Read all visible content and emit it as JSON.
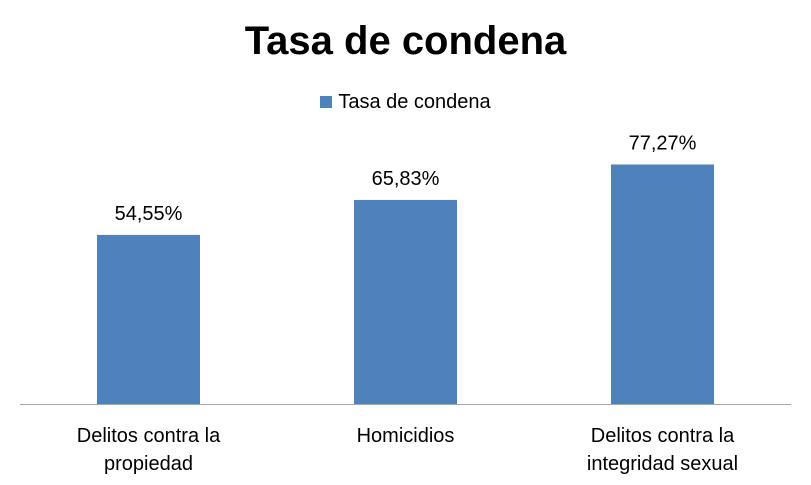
{
  "chart_data": {
    "type": "bar",
    "title": "Tasa de condena",
    "categories": [
      [
        "Delitos contra la",
        "propiedad"
      ],
      [
        "Homicidios"
      ],
      [
        "Delitos contra la",
        "integridad sexual"
      ]
    ],
    "series": [
      {
        "name": "Tasa de condena",
        "values": [
          54.55,
          65.83,
          77.27
        ],
        "labels": [
          "54,55%",
          "65,83%",
          "77,27%"
        ],
        "color": "#4f81bd"
      }
    ],
    "ylim": [
      0,
      100
    ],
    "grid": false,
    "legend": "top"
  }
}
